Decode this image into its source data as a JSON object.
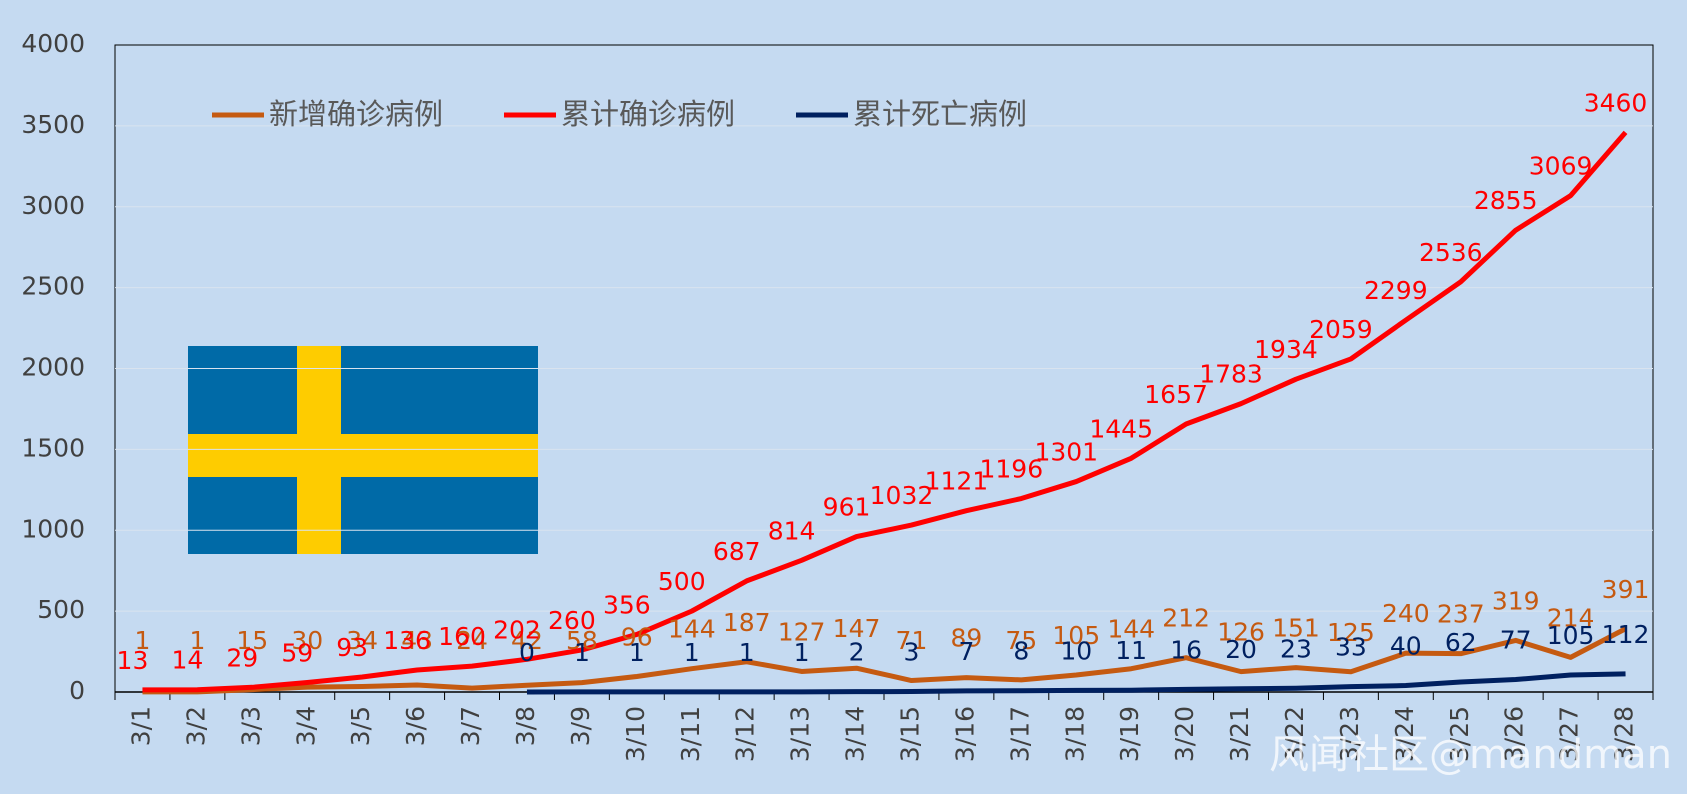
{
  "chart_data": {
    "type": "line",
    "categories": [
      "3/1",
      "3/2",
      "3/3",
      "3/4",
      "3/5",
      "3/6",
      "3/7",
      "3/8",
      "3/9",
      "3/10",
      "3/11",
      "3/12",
      "3/13",
      "3/14",
      "3/15",
      "3/16",
      "3/17",
      "3/18",
      "3/19",
      "3/20",
      "3/21",
      "3/22",
      "3/23",
      "3/24",
      "3/25",
      "3/26",
      "3/27",
      "3/28"
    ],
    "series": [
      {
        "name": "新增确诊病例",
        "color": "#c55a11",
        "values": [
          1,
          1,
          15,
          30,
          34,
          43,
          24,
          42,
          58,
          96,
          144,
          187,
          127,
          147,
          71,
          89,
          75,
          105,
          144,
          212,
          126,
          151,
          125,
          240,
          237,
          319,
          214,
          391
        ]
      },
      {
        "name": "累计确诊病例",
        "color": "#ff0000",
        "values": [
          13,
          14,
          29,
          59,
          93,
          136,
          160,
          202,
          260,
          356,
          500,
          687,
          814,
          961,
          1032,
          1121,
          1196,
          1301,
          1445,
          1657,
          1783,
          1934,
          2059,
          2299,
          2536,
          2855,
          3069,
          3460
        ]
      },
      {
        "name": "累计死亡病例",
        "color": "#002060",
        "values": [
          null,
          null,
          null,
          null,
          null,
          null,
          null,
          0,
          1,
          1,
          1,
          1,
          1,
          2,
          3,
          7,
          8,
          10,
          11,
          16,
          20,
          23,
          33,
          40,
          62,
          77,
          105,
          112
        ]
      }
    ],
    "ylim": [
      0,
      4000
    ],
    "yticks": [
      0,
      500,
      1000,
      1500,
      2000,
      2500,
      3000,
      3500,
      4000
    ],
    "grid": true,
    "watermark": "风闻社区@mandman"
  }
}
